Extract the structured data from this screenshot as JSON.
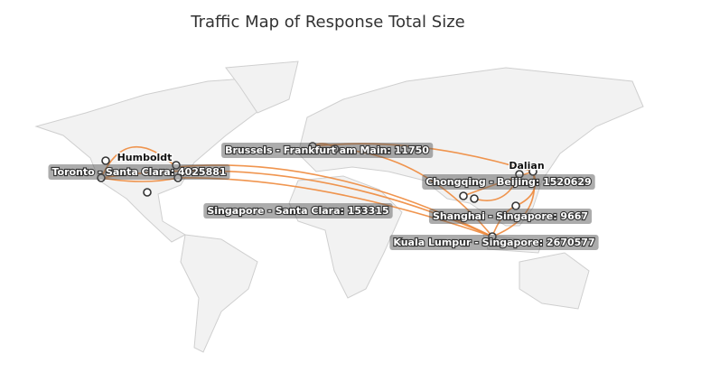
{
  "header": {
    "title": "Traffic Map of Response Total Size"
  },
  "places": [
    "Humboldt",
    "Dalian"
  ],
  "flows": [
    {
      "label": "Brussels - Frankfurt am Main: 11750"
    },
    {
      "label": "Toronto - Santa Clara: 4025881"
    },
    {
      "label": "Chongqing - Beijing: 1520629"
    },
    {
      "label": "Singapore - Santa Clara: 153315"
    },
    {
      "label": "Shanghai - Singapore: 9667"
    },
    {
      "label": "Kuala Lumpur - Singapore: 2670577"
    }
  ]
}
